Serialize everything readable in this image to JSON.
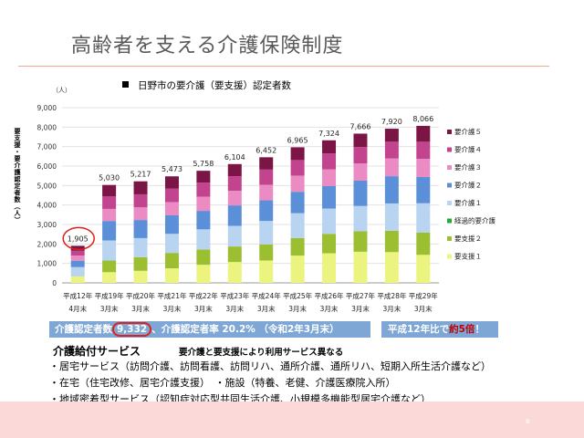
{
  "slide": {
    "title": "高齢者を支える介護保険制度",
    "page_number": "8"
  },
  "chart_data": {
    "type": "bar",
    "stacked": true,
    "title": "日野市の要介護（要支援）認定者数",
    "unit": "（人）",
    "ylabel": "要支援・要介護認定者数（人）",
    "ylim": [
      0,
      9000
    ],
    "yticks": [
      "0",
      "1,000",
      "2,000",
      "3,000",
      "4,000",
      "5,000",
      "6,000",
      "7,000",
      "8,000",
      "9,000"
    ],
    "categories": [
      [
        "平成12年",
        "4月末"
      ],
      [
        "平成19年",
        "3月末"
      ],
      [
        "平成20年",
        "3月末"
      ],
      [
        "平成21年",
        "3月末"
      ],
      [
        "平成22年",
        "3月末"
      ],
      [
        "平成23年",
        "3月末"
      ],
      [
        "平成24年",
        "3月末"
      ],
      [
        "平成25年",
        "3月末"
      ],
      [
        "平成26年",
        "3月末"
      ],
      [
        "平成27年",
        "3月末"
      ],
      [
        "平成28年",
        "3月末"
      ],
      [
        "平成29年",
        "3月末"
      ]
    ],
    "totals": [
      1905,
      5030,
      5217,
      5473,
      5758,
      6104,
      6452,
      6965,
      7324,
      7666,
      7920,
      8066
    ],
    "total_labels": [
      "1,905",
      "5,030",
      "5,217",
      "5,473",
      "5,758",
      "6,104",
      "6,452",
      "6,965",
      "7,324",
      "7,666",
      "7,920",
      "8,066"
    ],
    "highlighted_total_index": 0,
    "legend_position": "right",
    "series": [
      {
        "name": "要支援１",
        "color": "#ebf47e",
        "values": [
          330,
          550,
          620,
          750,
          930,
          1070,
          1150,
          1400,
          1520,
          1600,
          1580,
          1440
        ]
      },
      {
        "name": "要支援２",
        "color": "#9cbf32",
        "values": [
          0,
          590,
          700,
          790,
          780,
          800,
          830,
          900,
          1000,
          1050,
          1100,
          1150
        ]
      },
      {
        "name": "経過的要介護",
        "color": "#28a83a",
        "values": [
          0,
          10,
          0,
          0,
          0,
          0,
          0,
          0,
          0,
          0,
          0,
          0
        ]
      },
      {
        "name": "要介護１",
        "color": "#b8d4f0",
        "values": [
          480,
          1030,
          980,
          980,
          1040,
          1060,
          1200,
          1280,
          1300,
          1300,
          1400,
          1500
        ]
      },
      {
        "name": "要介護２",
        "color": "#5b90d8",
        "values": [
          330,
          1000,
          930,
          950,
          950,
          1050,
          1060,
          1100,
          1150,
          1300,
          1400,
          1350
        ]
      },
      {
        "name": "要介護３",
        "color": "#ea8cc3",
        "values": [
          260,
          620,
          650,
          680,
          730,
          750,
          800,
          830,
          860,
          890,
          910,
          930
        ]
      },
      {
        "name": "要介護４",
        "color": "#c2448e",
        "values": [
          250,
          640,
          670,
          700,
          720,
          750,
          780,
          800,
          820,
          840,
          860,
          880
        ]
      },
      {
        "name": "要介護５",
        "color": "#7a1546",
        "values": [
          255,
          590,
          667,
          623,
          608,
          624,
          632,
          655,
          674,
          686,
          670,
          816
        ]
      }
    ]
  },
  "summary": {
    "cert_prefix": "介護認定者数",
    "cert_count": "9,332",
    "cert_suffix": "、介護認定者率 20.2% （令和2年3月末）",
    "ratio_prefix": "平成12年比で",
    "ratio_value": "約5倍",
    "ratio_suffix": "！"
  },
  "services": {
    "heading": "介護給付サービス",
    "note": "要介護と要支援により利用サービス異なる",
    "items": [
      "・居宅サービス（訪問介護、訪問看護、訪問リハ、通所介護、通所リハ、短期入所生活介護など）",
      "・在宅（住宅改修、居宅介護支援）　・施設（特養、老健、介護医療院入所）",
      "・地域密着型サービス（認知症対応型共同生活介護、小規模多機能型居宅介護など）"
    ]
  },
  "colors": {
    "accent_rule": "#f4a98f",
    "summary_bar": "#7fa7d5",
    "highlight_circle": "#e0201a",
    "footer_band": "#fcd9d9"
  }
}
